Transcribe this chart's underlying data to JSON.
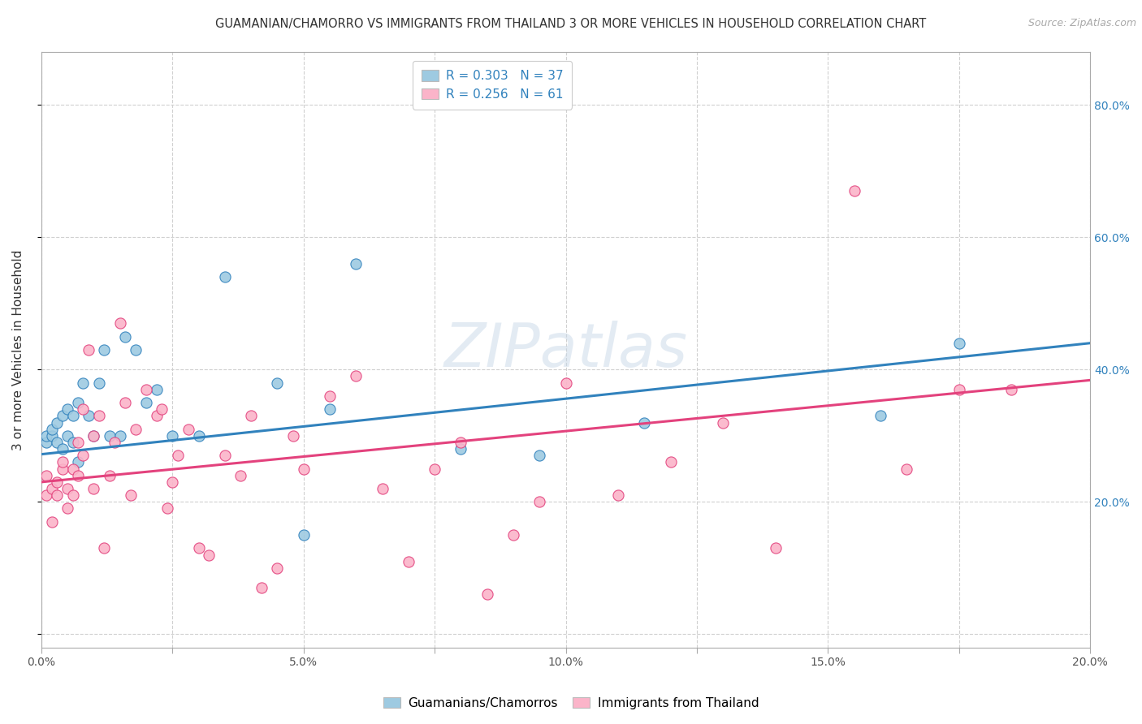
{
  "title": "GUAMANIAN/CHAMORRO VS IMMIGRANTS FROM THAILAND 3 OR MORE VEHICLES IN HOUSEHOLD CORRELATION CHART",
  "source": "Source: ZipAtlas.com",
  "ylabel": "3 or more Vehicles in Household",
  "xlim": [
    0.0,
    0.2
  ],
  "ylim": [
    -0.02,
    0.88
  ],
  "xticks": [
    0.0,
    0.025,
    0.05,
    0.075,
    0.1,
    0.125,
    0.15,
    0.175,
    0.2
  ],
  "xtick_labels": [
    "0.0%",
    "",
    "5.0%",
    "",
    "10.0%",
    "",
    "15.0%",
    "",
    "20.0%"
  ],
  "right_yticks": [
    0.0,
    0.2,
    0.4,
    0.6,
    0.8
  ],
  "right_ytick_labels": [
    "",
    "20.0%",
    "40.0%",
    "60.0%",
    "80.0%"
  ],
  "legend1_label": "R = 0.303   N = 37",
  "legend2_label": "R = 0.256   N = 61",
  "color_blue": "#9ecae1",
  "color_pink": "#fbb4c9",
  "line_color_blue": "#3182bd",
  "line_color_pink": "#e3427d",
  "blue_intercept": 0.272,
  "blue_slope": 0.84,
  "pink_intercept": 0.23,
  "pink_slope": 0.77,
  "blue_scatter_x": [
    0.001,
    0.001,
    0.002,
    0.002,
    0.003,
    0.003,
    0.004,
    0.004,
    0.005,
    0.005,
    0.006,
    0.006,
    0.007,
    0.007,
    0.008,
    0.009,
    0.01,
    0.011,
    0.012,
    0.013,
    0.015,
    0.016,
    0.018,
    0.02,
    0.022,
    0.025,
    0.03,
    0.035,
    0.045,
    0.05,
    0.055,
    0.06,
    0.08,
    0.095,
    0.115,
    0.16,
    0.175
  ],
  "blue_scatter_y": [
    0.29,
    0.3,
    0.3,
    0.31,
    0.29,
    0.32,
    0.28,
    0.33,
    0.3,
    0.34,
    0.29,
    0.33,
    0.35,
    0.26,
    0.38,
    0.33,
    0.3,
    0.38,
    0.43,
    0.3,
    0.3,
    0.45,
    0.43,
    0.35,
    0.37,
    0.3,
    0.3,
    0.54,
    0.38,
    0.15,
    0.34,
    0.56,
    0.28,
    0.27,
    0.32,
    0.33,
    0.44
  ],
  "pink_scatter_x": [
    0.001,
    0.001,
    0.002,
    0.002,
    0.003,
    0.003,
    0.004,
    0.004,
    0.005,
    0.005,
    0.006,
    0.006,
    0.007,
    0.007,
    0.008,
    0.008,
    0.009,
    0.01,
    0.01,
    0.011,
    0.012,
    0.013,
    0.014,
    0.015,
    0.016,
    0.017,
    0.018,
    0.02,
    0.022,
    0.023,
    0.024,
    0.025,
    0.026,
    0.028,
    0.03,
    0.032,
    0.035,
    0.038,
    0.04,
    0.042,
    0.045,
    0.048,
    0.05,
    0.055,
    0.06,
    0.065,
    0.07,
    0.075,
    0.08,
    0.085,
    0.09,
    0.095,
    0.1,
    0.11,
    0.12,
    0.13,
    0.14,
    0.155,
    0.165,
    0.175,
    0.185
  ],
  "pink_scatter_y": [
    0.24,
    0.21,
    0.22,
    0.17,
    0.21,
    0.23,
    0.25,
    0.26,
    0.19,
    0.22,
    0.21,
    0.25,
    0.24,
    0.29,
    0.27,
    0.34,
    0.43,
    0.22,
    0.3,
    0.33,
    0.13,
    0.24,
    0.29,
    0.47,
    0.35,
    0.21,
    0.31,
    0.37,
    0.33,
    0.34,
    0.19,
    0.23,
    0.27,
    0.31,
    0.13,
    0.12,
    0.27,
    0.24,
    0.33,
    0.07,
    0.1,
    0.3,
    0.25,
    0.36,
    0.39,
    0.22,
    0.11,
    0.25,
    0.29,
    0.06,
    0.15,
    0.2,
    0.38,
    0.21,
    0.26,
    0.32,
    0.13,
    0.67,
    0.25,
    0.37,
    0.37
  ],
  "watermark": "ZIPatlas",
  "background_color": "#ffffff",
  "grid_color": "#d0d0d0"
}
